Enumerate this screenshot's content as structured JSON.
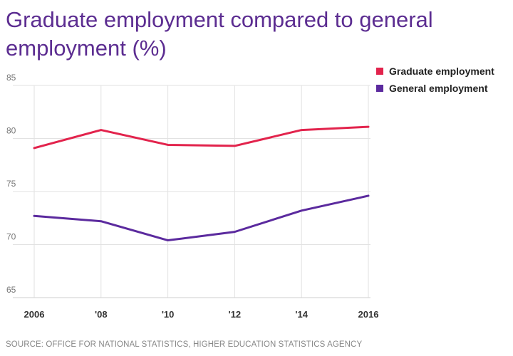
{
  "chart_data": {
    "type": "line",
    "title": "Graduate employment compared to general employment (%)",
    "xlabel": "",
    "ylabel": "",
    "x": [
      2006,
      2008,
      2010,
      2012,
      2014,
      2016
    ],
    "x_tick_labels": [
      "2006",
      "'08",
      "'10",
      "'12",
      "'14",
      "2016"
    ],
    "ylim": [
      65,
      85
    ],
    "y_ticks": [
      65,
      70,
      75,
      80,
      85
    ],
    "grid": true,
    "legend_position": "top-right",
    "series": [
      {
        "name": "Graduate employment",
        "color": "#e2234c",
        "values": [
          79.1,
          80.8,
          79.4,
          79.3,
          80.8,
          81.1
        ]
      },
      {
        "name": "General employment",
        "color": "#5b2a9e",
        "values": [
          72.7,
          72.2,
          70.4,
          71.2,
          73.2,
          74.6
        ]
      }
    ],
    "source": "SOURCE: OFFICE FOR NATIONAL STATISTICS, HIGHER EDUCATION STATISTICS AGENCY"
  }
}
